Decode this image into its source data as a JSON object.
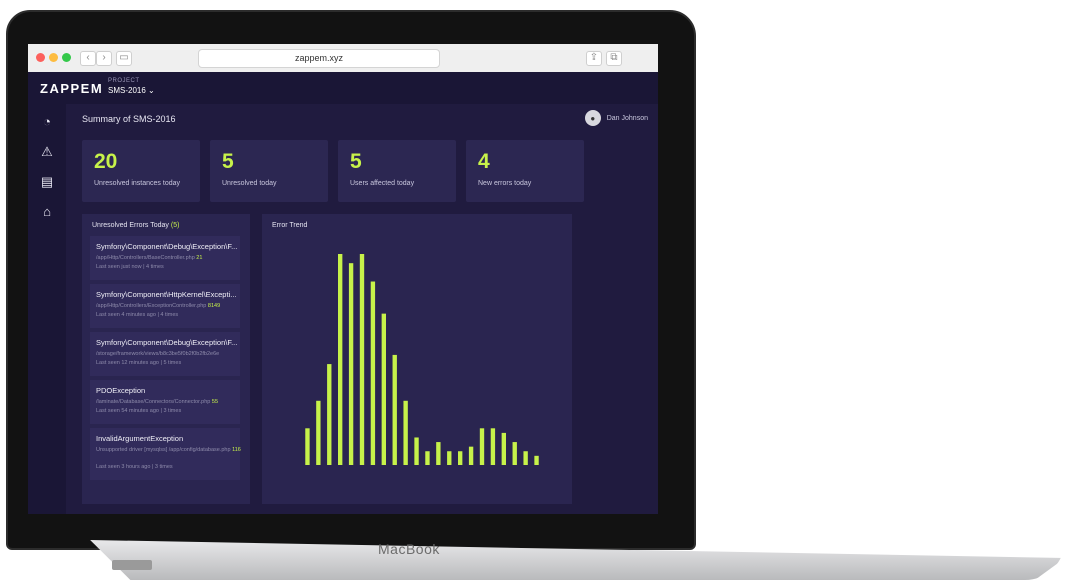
{
  "device": {
    "brand": "MacBook"
  },
  "browser": {
    "url": "zappem.xyz"
  },
  "app": {
    "logo": "ZAPPEM",
    "project_caption": "PROJECT",
    "project_name": "SMS-2016 ⌄"
  },
  "header": {
    "title": "Summary of SMS-2016",
    "user_name": "Dan Johnson"
  },
  "sidebar": {
    "items": [
      {
        "icon": "dashboard-icon",
        "glyph": "◔"
      },
      {
        "icon": "warning-icon",
        "glyph": "⚠"
      },
      {
        "icon": "document-icon",
        "glyph": "▤"
      },
      {
        "icon": "inbox-icon",
        "glyph": "⌂"
      }
    ]
  },
  "stats": [
    {
      "value": "20",
      "label": "Unresolved instances today"
    },
    {
      "value": "5",
      "label": "Unresolved today"
    },
    {
      "value": "5",
      "label": "Users affected today"
    },
    {
      "value": "4",
      "label": "New errors today"
    }
  ],
  "errors_panel": {
    "title": "Unresolved Errors Today",
    "count": "(5)",
    "items": [
      {
        "title": "Symfony\\Component\\Debug\\Exception\\F...",
        "path": "/app/Http/Controllers/BaseController.php",
        "line": "21",
        "seen": "Last seen just now | 4 times"
      },
      {
        "title": "Symfony\\Component\\HttpKernel\\Excepti...",
        "path": "/app/Http/Controllers/ExceptionController.php",
        "line": "8149",
        "seen": "Last seen 4 minutes ago | 4 times"
      },
      {
        "title": "Symfony\\Component\\Debug\\Exception\\F...",
        "path": "/storage/framework/views/b8c3be5f0b2f0b2fb2e6e",
        "line": "",
        "seen": "Last seen 12 minutes ago | 5 times"
      },
      {
        "title": "PDOException",
        "path": "/laminate/Database/Connectors/Connector.php",
        "line": "55",
        "seen": "Last seen 54 minutes ago | 3 times"
      },
      {
        "title": "InvalidArgumentException",
        "path": "Unsupported driver [mysqlss] /app/config/database.php",
        "line": "11669",
        "seen": "Last seen 3 hours ago | 3 times"
      }
    ]
  },
  "chart_panel": {
    "title": "Error Trend"
  },
  "chart_data": {
    "type": "bar",
    "title": "Error Trend",
    "series_color": "#c7f24a",
    "values": [
      8,
      14,
      22,
      46,
      44,
      46,
      40,
      33,
      24,
      14,
      6,
      3,
      5,
      3,
      3,
      4,
      8,
      8,
      7,
      5,
      3,
      2
    ]
  },
  "colors": {
    "background": "#201b3f",
    "panel": "#2a2550",
    "accent": "#c7f24a"
  }
}
